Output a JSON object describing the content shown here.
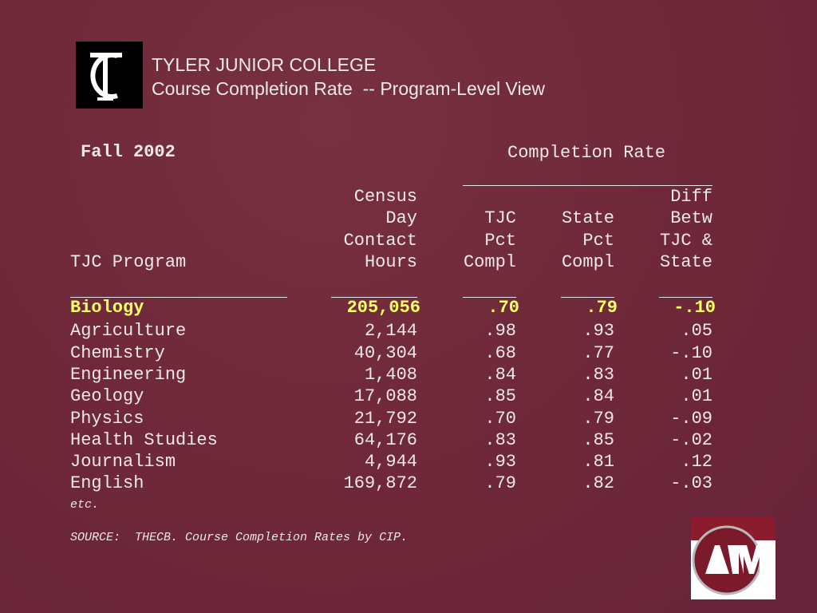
{
  "header": {
    "title": "TYLER JUNIOR COLLEGE",
    "subtitle": "Course Completion Rate  -- Program-Level View"
  },
  "term": "Fall 2002",
  "group_header": "Completion Rate",
  "table": {
    "columns": [
      [
        "TJC Program"
      ],
      [
        "Census",
        "Day",
        "Contact",
        "Hours"
      ],
      [
        "TJC",
        "Pct",
        "Compl"
      ],
      [
        "State",
        "Pct",
        "Compl"
      ],
      [
        "Diff",
        "Betw",
        "TJC &",
        "State"
      ]
    ],
    "rows": [
      [
        "Biology",
        "205,056",
        ".70",
        ".79",
        "-.10"
      ],
      [
        "Agriculture",
        "2,144",
        ".98",
        ".93",
        ".05"
      ],
      [
        "Chemistry",
        "40,304",
        ".68",
        ".77",
        "-.10"
      ],
      [
        "Engineering",
        "1,408",
        ".84",
        ".83",
        ".01"
      ],
      [
        "Geology",
        "17,088",
        ".85",
        ".84",
        ".01"
      ],
      [
        "Physics",
        "21,792",
        ".70",
        ".79",
        "-.09"
      ],
      [
        "Health Studies",
        "64,176",
        ".83",
        ".85",
        "-.02"
      ],
      [
        "Journalism",
        "4,944",
        ".93",
        ".81",
        ".12"
      ],
      [
        "English",
        "169,872",
        ".79",
        ".82",
        "-.03"
      ]
    ]
  },
  "footnote": "etc.",
  "source": "SOURCE:  THECB. Course Completion Rates by CIP."
}
